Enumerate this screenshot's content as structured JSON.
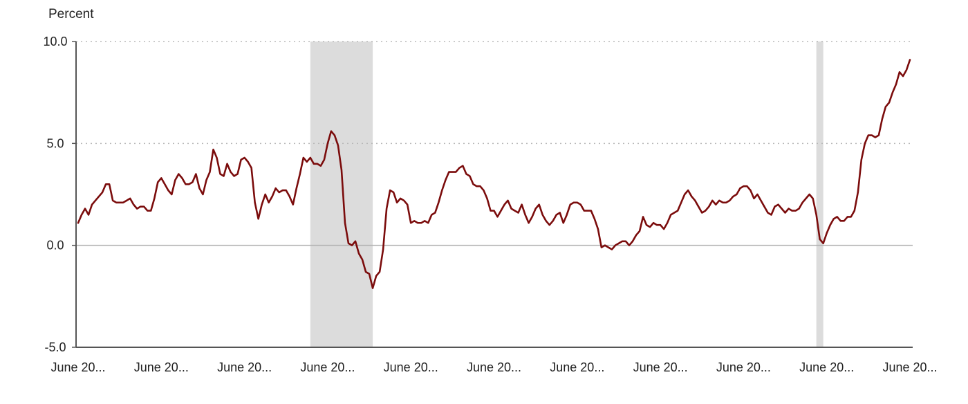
{
  "chart_data": {
    "type": "line",
    "title": "",
    "ylabel": "Percent",
    "xlabel": "",
    "ylim": [
      -5,
      10
    ],
    "y_ticks": [
      {
        "value": 10,
        "label": "10.0"
      },
      {
        "value": 5,
        "label": "5.0"
      },
      {
        "value": 0,
        "label": "0.0"
      },
      {
        "value": -5,
        "label": "-5.0"
      }
    ],
    "x_tick_labels": [
      "June 20...",
      "June 20...",
      "June 20...",
      "June 20...",
      "June 20...",
      "June 20...",
      "June 20...",
      "June 20...",
      "June 20...",
      "June 20...",
      "June 20..."
    ],
    "x_tick_index": [
      0,
      24,
      48,
      72,
      96,
      120,
      144,
      168,
      192,
      216,
      240
    ],
    "grid": "horizontal dotted",
    "legend": "none",
    "line_color": "#7b0c0c",
    "shade_color": "#dcdcdc",
    "recession_bands": [
      [
        67,
        85
      ],
      [
        213,
        215
      ]
    ],
    "series": [
      {
        "values": [
          1.1,
          1.5,
          1.8,
          1.5,
          2.0,
          2.2,
          2.4,
          2.6,
          3.0,
          3.0,
          2.2,
          2.1,
          2.1,
          2.1,
          2.2,
          2.3,
          2.0,
          1.8,
          1.9,
          1.9,
          1.7,
          1.7,
          2.3,
          3.1,
          3.3,
          3.0,
          2.7,
          2.5,
          3.2,
          3.5,
          3.3,
          3.0,
          3.0,
          3.1,
          3.5,
          2.8,
          2.5,
          3.2,
          3.6,
          4.7,
          4.3,
          3.5,
          3.4,
          4.0,
          3.6,
          3.4,
          3.5,
          4.2,
          4.3,
          4.1,
          3.8,
          2.1,
          1.3,
          2.0,
          2.5,
          2.1,
          2.4,
          2.8,
          2.6,
          2.7,
          2.7,
          2.4,
          2.0,
          2.8,
          3.5,
          4.3,
          4.1,
          4.3,
          4.0,
          4.0,
          3.9,
          4.2,
          5.0,
          5.6,
          5.4,
          4.9,
          3.7,
          1.1,
          0.1,
          0.0,
          0.2,
          -0.4,
          -0.7,
          -1.3,
          -1.4,
          -2.1,
          -1.5,
          -1.3,
          -0.2,
          1.8,
          2.7,
          2.6,
          2.1,
          2.3,
          2.2,
          2.0,
          1.1,
          1.2,
          1.1,
          1.1,
          1.2,
          1.1,
          1.5,
          1.6,
          2.1,
          2.7,
          3.2,
          3.6,
          3.6,
          3.6,
          3.8,
          3.9,
          3.5,
          3.4,
          3.0,
          2.9,
          2.9,
          2.7,
          2.3,
          1.7,
          1.7,
          1.4,
          1.7,
          2.0,
          2.2,
          1.8,
          1.7,
          1.6,
          2.0,
          1.5,
          1.1,
          1.4,
          1.8,
          2.0,
          1.5,
          1.2,
          1.0,
          1.2,
          1.5,
          1.6,
          1.1,
          1.5,
          2.0,
          2.1,
          2.1,
          2.0,
          1.7,
          1.7,
          1.7,
          1.3,
          0.8,
          -0.1,
          0.0,
          -0.1,
          -0.2,
          0.0,
          0.1,
          0.2,
          0.2,
          0.0,
          0.2,
          0.5,
          0.7,
          1.4,
          1.0,
          0.9,
          1.1,
          1.0,
          1.0,
          0.8,
          1.1,
          1.5,
          1.6,
          1.7,
          2.1,
          2.5,
          2.7,
          2.4,
          2.2,
          1.9,
          1.6,
          1.7,
          1.9,
          2.2,
          2.0,
          2.2,
          2.1,
          2.1,
          2.2,
          2.4,
          2.5,
          2.8,
          2.9,
          2.9,
          2.7,
          2.3,
          2.5,
          2.2,
          1.9,
          1.6,
          1.5,
          1.9,
          2.0,
          1.8,
          1.6,
          1.8,
          1.7,
          1.7,
          1.8,
          2.1,
          2.3,
          2.5,
          2.3,
          1.5,
          0.3,
          0.1,
          0.6,
          1.0,
          1.3,
          1.4,
          1.2,
          1.2,
          1.4,
          1.4,
          1.7,
          2.6,
          4.2,
          5.0,
          5.4,
          5.4,
          5.3,
          5.4,
          6.2,
          6.8,
          7.0,
          7.5,
          7.9,
          8.5,
          8.3,
          8.6,
          9.1
        ]
      }
    ]
  }
}
